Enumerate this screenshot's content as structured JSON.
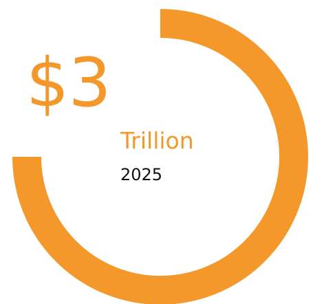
{
  "chart_data": {
    "type": "pie",
    "value_text": "$3",
    "unit_text": "Trillion",
    "period_text": "2025",
    "fraction_filled": 0.75,
    "start_position": "top",
    "direction": "clockwise",
    "ring_color": "#F4982B",
    "value_color": "#F4982B",
    "unit_color": "#F4982B",
    "period_color": "#111111"
  }
}
